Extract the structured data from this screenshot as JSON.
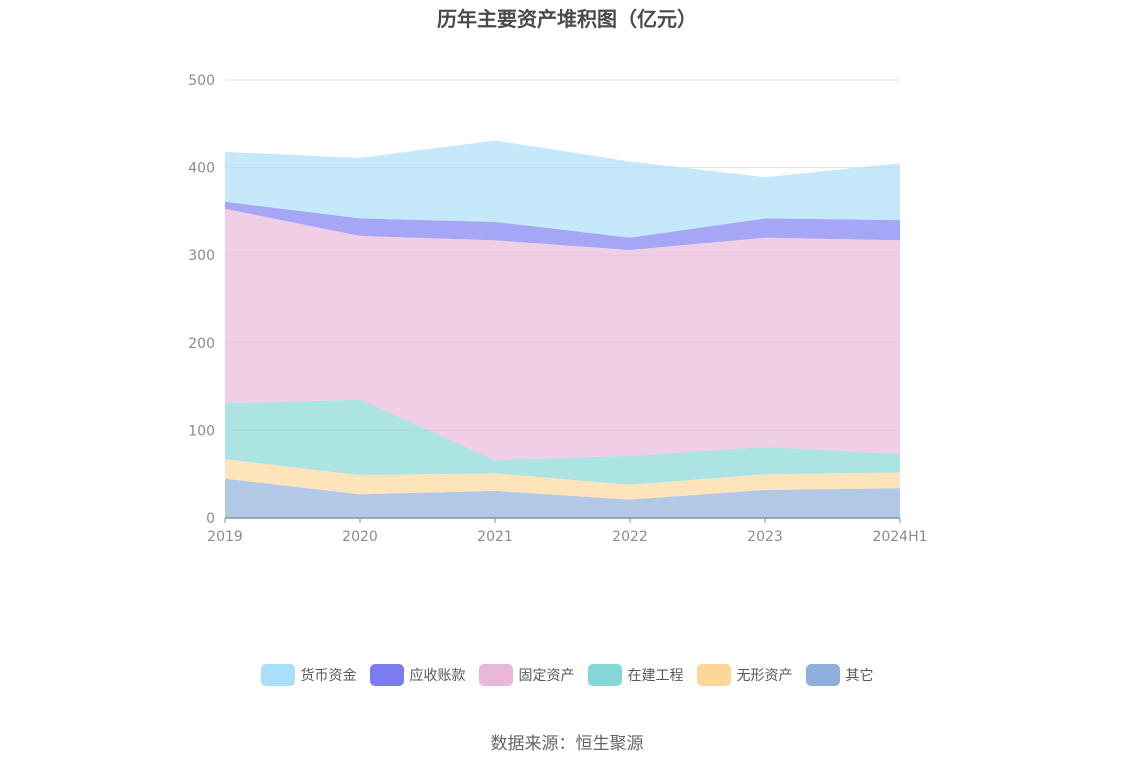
{
  "chart_data": {
    "type": "area",
    "stacked": true,
    "title": "历年主要资产堆积图（亿元）",
    "x": [
      "2019",
      "2020",
      "2021",
      "2022",
      "2023",
      "2024H1"
    ],
    "ylim": [
      0,
      500
    ],
    "yticks": [
      0,
      100,
      200,
      300,
      400,
      500
    ],
    "grid": true,
    "legend_position": "bottom",
    "series": [
      {
        "name": "其它",
        "color": "#8eaedc",
        "values": [
          45,
          27,
          31,
          21,
          32,
          34
        ]
      },
      {
        "name": "无形资产",
        "color": "#fdd799",
        "values": [
          22,
          22,
          20,
          17,
          18,
          18
        ]
      },
      {
        "name": "在建工程",
        "color": "#85d7d7",
        "values": [
          64,
          86,
          15,
          33,
          31,
          21
        ]
      },
      {
        "name": "固定资产",
        "color": "#e8b7da",
        "values": [
          222,
          187,
          251,
          235,
          239,
          244
        ]
      },
      {
        "name": "应收账款",
        "color": "#7b7cf2",
        "values": [
          8,
          20,
          21,
          14,
          22,
          23
        ]
      },
      {
        "name": "货币资金",
        "color": "#a9dff8",
        "values": [
          57,
          69,
          93,
          87,
          47,
          65
        ]
      }
    ]
  },
  "legend_order": [
    "货币资金",
    "应收账款",
    "固定资产",
    "在建工程",
    "无形资产",
    "其它"
  ],
  "source": "数据来源：恒生聚源"
}
